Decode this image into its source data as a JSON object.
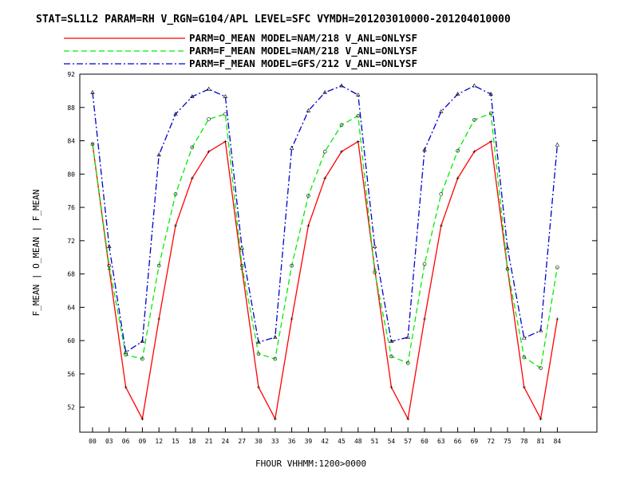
{
  "chart_data": {
    "type": "line",
    "title": "STAT=SL1L2 PARAM=RH V_RGN=G104/APL LEVEL=SFC VYMDH=201203010000-201204010000",
    "xlabel": "FHOUR VHHMM:1200>0000",
    "ylabel": "F_MEAN | O_MEAN | F_MEAN",
    "x": [
      "00",
      "03",
      "06",
      "09",
      "12",
      "15",
      "18",
      "21",
      "24",
      "27",
      "30",
      "33",
      "36",
      "39",
      "42",
      "45",
      "48",
      "51",
      "54",
      "57",
      "60",
      "63",
      "66",
      "69",
      "72",
      "75",
      "78",
      "81",
      "84"
    ],
    "ylim": [
      49,
      92
    ],
    "yticks": [
      52,
      56,
      60,
      64,
      68,
      72,
      76,
      80,
      84,
      88,
      92
    ],
    "grid": false,
    "legend_position": "top-left",
    "series": [
      {
        "name": "PARM=O_MEAN MODEL=NAM/218 V_ANL=ONLYSF",
        "color": "#ff0000",
        "style": "solid",
        "marker": "plus",
        "values": [
          83.6,
          68.6,
          54.4,
          50.6,
          62.6,
          73.8,
          79.5,
          82.7,
          83.9,
          68.6,
          54.4,
          50.6,
          62.6,
          73.8,
          79.5,
          82.7,
          83.9,
          68.6,
          54.4,
          50.6,
          62.6,
          73.8,
          79.5,
          82.7,
          83.9,
          68.6,
          54.4,
          50.6,
          62.6
        ]
      },
      {
        "name": "PARM=F_MEAN MODEL=NAM/218 V_ANL=ONLYSF",
        "color": "#00ee00",
        "style": "dashed",
        "marker": "circle",
        "values": [
          83.6,
          69.0,
          58.3,
          57.8,
          69.0,
          77.6,
          83.2,
          86.6,
          87.2,
          69.0,
          58.4,
          57.8,
          69.0,
          77.4,
          82.7,
          85.9,
          87.0,
          68.2,
          58.1,
          57.3,
          69.2,
          77.6,
          82.8,
          86.5,
          87.3,
          68.6,
          58.0,
          56.7,
          68.8
        ]
      },
      {
        "name": "PARM=F_MEAN MODEL=GFS/212 V_ANL=ONLYSF",
        "color": "#0000cc",
        "style": "dashdot",
        "marker": "triangle",
        "values": [
          89.8,
          71.3,
          58.6,
          59.9,
          82.3,
          87.2,
          89.3,
          90.2,
          89.3,
          71.1,
          59.8,
          60.4,
          83.1,
          87.6,
          89.8,
          90.6,
          89.5,
          71.3,
          59.9,
          60.4,
          82.9,
          87.5,
          89.6,
          90.6,
          89.6,
          71.1,
          60.3,
          61.2,
          83.5
        ]
      }
    ]
  }
}
